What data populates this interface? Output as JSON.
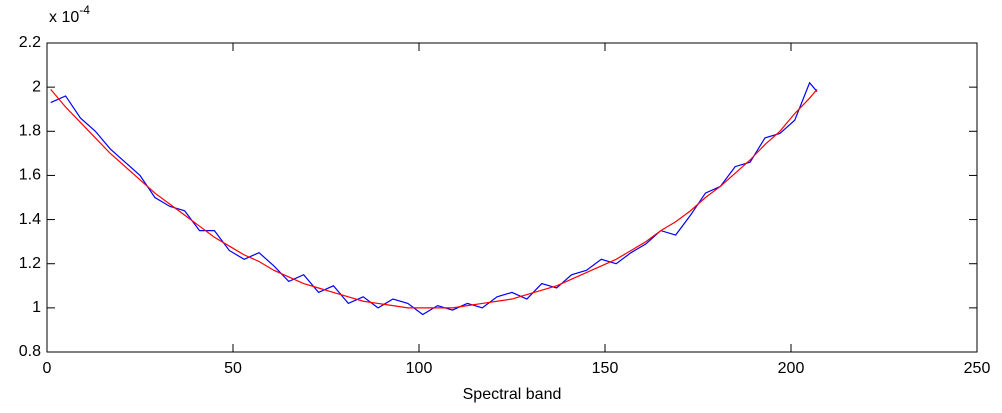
{
  "chart_data": {
    "type": "line",
    "xlabel": "Spectral band",
    "multiplier": {
      "base": "x 10",
      "exponent": "-4"
    },
    "x": [
      1,
      5,
      9,
      13,
      17,
      21,
      25,
      29,
      33,
      37,
      41,
      45,
      49,
      53,
      57,
      61,
      65,
      69,
      73,
      77,
      81,
      85,
      89,
      93,
      97,
      101,
      105,
      109,
      113,
      117,
      121,
      125,
      129,
      133,
      137,
      141,
      145,
      149,
      153,
      157,
      161,
      165,
      169,
      173,
      177,
      181,
      185,
      189,
      193,
      197,
      201,
      205,
      207
    ],
    "series": [
      {
        "color": "#0000ff",
        "values": [
          1.93,
          1.96,
          1.86,
          1.8,
          1.72,
          1.66,
          1.6,
          1.5,
          1.46,
          1.44,
          1.35,
          1.35,
          1.26,
          1.22,
          1.25,
          1.19,
          1.12,
          1.15,
          1.07,
          1.1,
          1.02,
          1.05,
          1.0,
          1.04,
          1.02,
          0.97,
          1.01,
          0.99,
          1.02,
          1.0,
          1.05,
          1.07,
          1.04,
          1.11,
          1.09,
          1.15,
          1.17,
          1.22,
          1.2,
          1.25,
          1.29,
          1.35,
          1.33,
          1.42,
          1.52,
          1.55,
          1.64,
          1.66,
          1.77,
          1.79,
          1.85,
          2.02,
          1.98
        ]
      },
      {
        "color": "#ff0000",
        "values": [
          1.99,
          1.91,
          1.84,
          1.77,
          1.7,
          1.64,
          1.58,
          1.52,
          1.47,
          1.42,
          1.37,
          1.32,
          1.28,
          1.24,
          1.21,
          1.17,
          1.14,
          1.11,
          1.09,
          1.07,
          1.05,
          1.03,
          1.02,
          1.01,
          1.0,
          1.0,
          1.0,
          1.0,
          1.01,
          1.02,
          1.03,
          1.04,
          1.06,
          1.08,
          1.1,
          1.13,
          1.16,
          1.19,
          1.22,
          1.26,
          1.3,
          1.35,
          1.39,
          1.44,
          1.5,
          1.55,
          1.61,
          1.67,
          1.74,
          1.8,
          1.88,
          1.95,
          1.99
        ]
      }
    ],
    "xlim": [
      0,
      250
    ],
    "xticks": [
      0,
      50,
      100,
      150,
      200,
      250
    ],
    "ylim": [
      0.8,
      2.2
    ],
    "yticks": [
      0.8,
      1,
      1.2,
      1.4,
      1.6,
      1.8,
      2,
      2.2
    ],
    "grid": false
  }
}
